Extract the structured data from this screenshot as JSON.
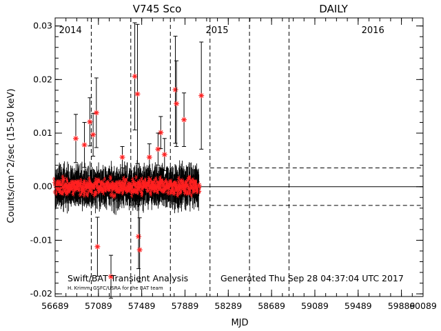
{
  "chart_data": {
    "type": "scatter",
    "title_left": "V745 Sco",
    "title_right": "DAILY",
    "xlabel": "MJD",
    "ylabel": "Counts/cm^2/sec (15-50 keV)",
    "xlim": [
      56689,
      60089
    ],
    "ylim": [
      -0.0205,
      0.0315
    ],
    "x_ticks": [
      56689,
      57089,
      57489,
      57889,
      58289,
      58689,
      59089,
      59489,
      59889,
      60089
    ],
    "y_ticks": [
      -0.02,
      -0.01,
      0.0,
      0.01,
      0.02,
      0.03
    ],
    "year_labels": [
      {
        "text": "2014",
        "x": 56725
      },
      {
        "text": "2015",
        "x": 58080
      },
      {
        "text": "2016",
        "x": 59520
      }
    ],
    "year_boundaries": [
      57023,
      57388,
      57754,
      58120,
      58485,
      58850
    ],
    "threshold_lines": [
      0.0035,
      -0.0035
    ],
    "threshold_start_x": 58120,
    "zero_line": 0.0,
    "marker_color": "#ff2020",
    "errorbar_color": "#000000",
    "dense_band": {
      "x_start": 56689,
      "x_end": 58020,
      "center": 0.0,
      "spread": 0.0026,
      "count": 620
    },
    "highlight_points": [
      {
        "x": 56960,
        "y": 0.0078,
        "err": 0.0042
      },
      {
        "x": 57010,
        "y": 0.0121,
        "err": 0.0045
      },
      {
        "x": 57040,
        "y": 0.0097,
        "err": 0.004
      },
      {
        "x": 57070,
        "y": 0.0138,
        "err": 0.0065
      },
      {
        "x": 57080,
        "y": -0.0112,
        "err": 0.0055
      },
      {
        "x": 57205,
        "y": -0.0168,
        "err": 0.004
      },
      {
        "x": 57425,
        "y": 0.0206,
        "err": 0.01
      },
      {
        "x": 57450,
        "y": 0.0173,
        "err": 0.013
      },
      {
        "x": 57460,
        "y": -0.0093,
        "err": 0.006
      },
      {
        "x": 57470,
        "y": -0.0118,
        "err": 0.006
      },
      {
        "x": 57665,
        "y": 0.0101,
        "err": 0.003
      },
      {
        "x": 57800,
        "y": 0.0181,
        "err": 0.01
      },
      {
        "x": 57810,
        "y": 0.0155,
        "err": 0.008
      },
      {
        "x": 57880,
        "y": 0.0125,
        "err": 0.005
      },
      {
        "x": 58040,
        "y": 0.017,
        "err": 0.01
      },
      {
        "x": 57640,
        "y": 0.007,
        "err": 0.003
      },
      {
        "x": 57700,
        "y": 0.006,
        "err": 0.003
      },
      {
        "x": 56880,
        "y": 0.009,
        "err": 0.0045
      },
      {
        "x": 57560,
        "y": 0.0055,
        "err": 0.0025
      },
      {
        "x": 57310,
        "y": 0.0055,
        "err": 0.002
      }
    ]
  },
  "footer": {
    "left_main": "Swift/BAT Transient Analysis",
    "left_sub": "H. Krimm, GSFC/USRA for the BAT team",
    "right": "Generated Thu Sep 28 04:37:04 UTC 2017"
  }
}
